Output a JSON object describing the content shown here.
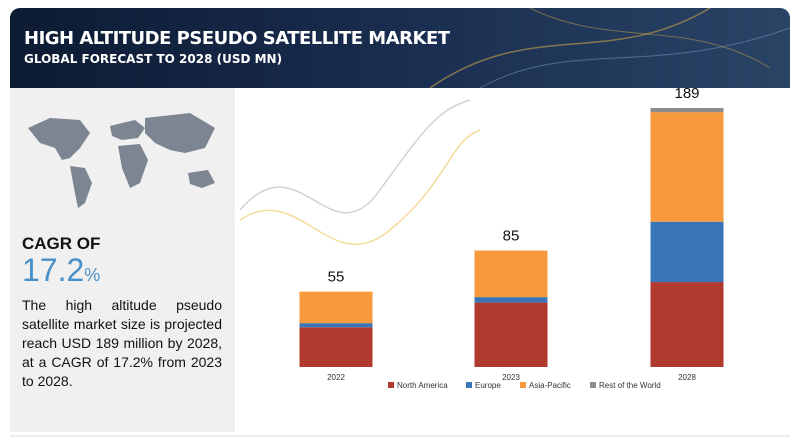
{
  "header": {
    "title": "HIGH ALTITUDE PSEUDO SATELLITE MARKET",
    "subtitle": "GLOBAL FORECAST TO 2028 (USD MN)"
  },
  "summary": {
    "cagr_label": "CAGR OF",
    "cagr_value": "17.2",
    "cagr_unit": "%",
    "text": "The high altitude pseudo satellite market size is projected reach USD 189 million by 2028, at a CAGR of 17.2% from 2023 to 2028."
  },
  "chart_data": {
    "type": "stacked_bar",
    "categories": [
      "2022",
      "2023",
      "2028"
    ],
    "totals": [
      55,
      85,
      189
    ],
    "series": [
      {
        "name": "North America",
        "color": "#b03a2e",
        "values": [
          29,
          47,
          62
        ]
      },
      {
        "name": "Europe",
        "color": "#3a75b8",
        "values": [
          3,
          4,
          44
        ]
      },
      {
        "name": "Asia-Pacific",
        "color": "#f79a3e",
        "values": [
          23,
          34,
          80
        ]
      },
      {
        "name": "Rest of the World",
        "color": "#8c8c8c",
        "values": [
          0,
          0,
          3
        ]
      }
    ]
  }
}
